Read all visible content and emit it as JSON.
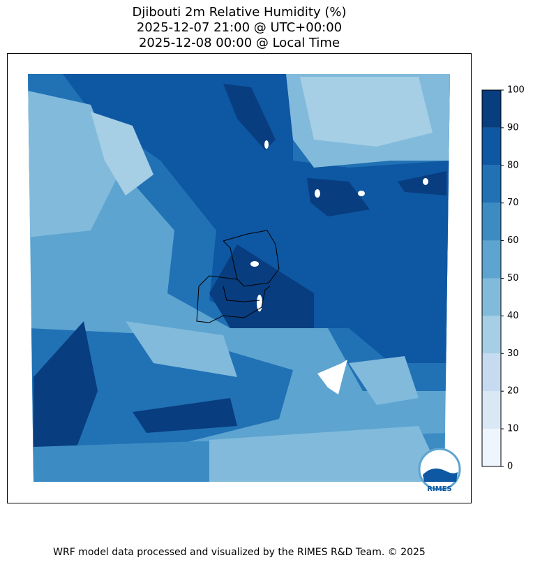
{
  "header": {
    "title": "Djibouti 2m Relative Humidity (%)",
    "subtitle_utc": "2025-12-07 21:00 @ UTC+00:00",
    "subtitle_local": "2025-12-08 00:00 @ Local Time"
  },
  "colorbar": {
    "ticks": [
      0,
      10,
      20,
      30,
      40,
      50,
      60,
      70,
      80,
      90,
      100
    ],
    "colors": [
      "#eef5fc",
      "#dae8f6",
      "#c6dbef",
      "#a6cee4",
      "#82badb",
      "#5da4d0",
      "#3c8cc3",
      "#2171b5",
      "#0e57a2",
      "#083d7f"
    ]
  },
  "logo": {
    "text": "RIMES"
  },
  "footer": {
    "text": "WRF model data processed and visualized by the RIMES R&D Team. © 2025"
  }
}
